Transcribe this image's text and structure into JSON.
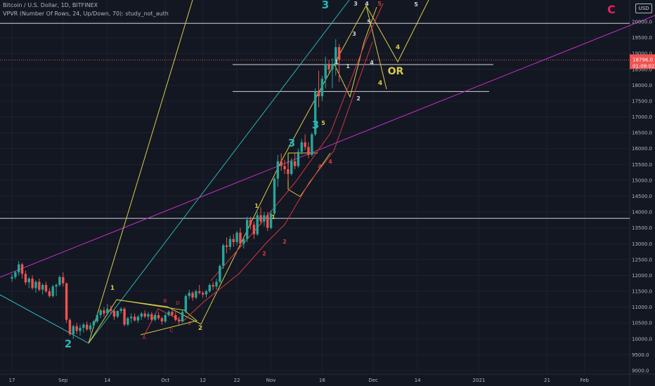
{
  "legend": {
    "symbol": "Bitcoin / U.S. Dollar, 1D, BITFINEX",
    "indicator": "VPVR (Number Of Rows, 24, Up/Down, 70): study_not_auth"
  },
  "currency_button": "USD",
  "price_badge": {
    "price": "18796.0",
    "countdown": "01:08:02",
    "color": "#ef5350"
  },
  "colors": {
    "up": "#26a69a",
    "down": "#ef5350",
    "yellow": "#d8cc48",
    "cyan": "#2ab5b5",
    "magenta": "#c42fc4",
    "white": "#d1d4dc",
    "red_line": "#d23842",
    "corner_c": "#e91e63"
  },
  "chart_data": {
    "type": "candlestick",
    "ylim": [
      8950,
      20250
    ],
    "y_ticks": [
      9000,
      9500,
      10000,
      10500,
      11000,
      11500,
      12000,
      12500,
      13000,
      13500,
      14000,
      14500,
      15000,
      15500,
      16000,
      16500,
      17000,
      17500,
      18000,
      18500,
      19000,
      19500,
      20000
    ],
    "y_tick_labels": [
      "9000.0",
      "9500.0",
      "10000.0",
      "10500.0",
      "11000.0",
      "11500.0",
      "12000.0",
      "12500.0",
      "13000.0",
      "13500.0",
      "14000.0",
      "14500.0",
      "15000.0",
      "15500.0",
      "16000.0",
      "16500.0",
      "17000.0",
      "17500.0",
      "18000.0",
      "18500.0",
      "19000.0",
      "19500.0",
      "20000.0"
    ],
    "x_ticks": [
      {
        "label": "17",
        "day": 0
      },
      {
        "label": "Sep",
        "day": 15
      },
      {
        "label": "14",
        "day": 28
      },
      {
        "label": "Oct",
        "day": 45
      },
      {
        "label": "12",
        "day": 56
      },
      {
        "label": "22",
        "day": 66
      },
      {
        "label": "Nov",
        "day": 76
      },
      {
        "label": "16",
        "day": 91
      },
      {
        "label": "Dec",
        "day": 106
      },
      {
        "label": "14",
        "day": 119
      },
      {
        "label": "2021",
        "day": 137
      },
      {
        "label": "21",
        "day": 157
      },
      {
        "label": "Feb",
        "day": 168
      }
    ],
    "candles_ohlc": [
      [
        11900,
        12050,
        11800,
        11950
      ],
      [
        11950,
        12150,
        11880,
        12100
      ],
      [
        12100,
        12450,
        12000,
        12350
      ],
      [
        12350,
        12400,
        11900,
        12050
      ],
      [
        12050,
        12150,
        11700,
        11780
      ],
      [
        11780,
        11950,
        11600,
        11900
      ],
      [
        11900,
        12000,
        11550,
        11600
      ],
      [
        11600,
        11850,
        11450,
        11800
      ],
      [
        11800,
        11900,
        11500,
        11550
      ],
      [
        11550,
        11750,
        11400,
        11700
      ],
      [
        11700,
        11800,
        11450,
        11500
      ],
      [
        11500,
        11600,
        11300,
        11350
      ],
      [
        11350,
        11700,
        11300,
        11650
      ],
      [
        11650,
        11750,
        11350,
        11700
      ],
      [
        11700,
        12000,
        11650,
        11950
      ],
      [
        11950,
        12100,
        11650,
        11750
      ],
      [
        11750,
        11780,
        10500,
        10600
      ],
      [
        10600,
        10650,
        10100,
        10150
      ],
      [
        10150,
        10450,
        10000,
        10400
      ],
      [
        10400,
        10500,
        10150,
        10250
      ],
      [
        10250,
        10450,
        10100,
        10350
      ],
      [
        10350,
        10500,
        10200,
        10450
      ],
      [
        10450,
        10550,
        10250,
        10300
      ],
      [
        10300,
        10500,
        10200,
        10420
      ],
      [
        10420,
        10600,
        10350,
        10550
      ],
      [
        10550,
        10800,
        10500,
        10750
      ],
      [
        10750,
        10950,
        10650,
        10900
      ],
      [
        10900,
        11000,
        10700,
        10800
      ],
      [
        10800,
        11100,
        10750,
        10950
      ],
      [
        10950,
        11050,
        10800,
        10880
      ],
      [
        10880,
        10950,
        10600,
        10700
      ],
      [
        10700,
        10900,
        10650,
        10880
      ],
      [
        10880,
        11000,
        10800,
        10950
      ],
      [
        10950,
        11000,
        10400,
        10450
      ],
      [
        10450,
        10700,
        10400,
        10650
      ],
      [
        10650,
        10800,
        10500,
        10700
      ],
      [
        10700,
        10800,
        10550,
        10580
      ],
      [
        10580,
        10750,
        10500,
        10700
      ],
      [
        10700,
        10850,
        10600,
        10800
      ],
      [
        10800,
        10900,
        10650,
        10700
      ],
      [
        10700,
        10850,
        10600,
        10780
      ],
      [
        10780,
        10850,
        10550,
        10600
      ],
      [
        10600,
        10800,
        10550,
        10750
      ],
      [
        10750,
        10850,
        10600,
        10650
      ],
      [
        10650,
        10700,
        10450,
        10550
      ],
      [
        10550,
        10800,
        10500,
        10750
      ],
      [
        10750,
        10900,
        10700,
        10850
      ],
      [
        10850,
        10950,
        10700,
        10750
      ],
      [
        10750,
        10850,
        10550,
        10600
      ],
      [
        10600,
        10700,
        10450,
        10550
      ],
      [
        10550,
        10900,
        10500,
        10850
      ],
      [
        10850,
        11400,
        10800,
        11350
      ],
      [
        11350,
        11550,
        11250,
        11450
      ],
      [
        11450,
        11500,
        11200,
        11300
      ],
      [
        11300,
        11550,
        11250,
        11500
      ],
      [
        11500,
        11700,
        11400,
        11450
      ],
      [
        11450,
        11500,
        11300,
        11400
      ],
      [
        11400,
        11550,
        11300,
        11500
      ],
      [
        11500,
        11750,
        11450,
        11700
      ],
      [
        11700,
        11800,
        11550,
        11650
      ],
      [
        11650,
        11900,
        11550,
        11800
      ],
      [
        11800,
        12350,
        11750,
        12300
      ],
      [
        12300,
        13000,
        12200,
        12950
      ],
      [
        12950,
        13200,
        12700,
        12900
      ],
      [
        12900,
        13250,
        12800,
        13150
      ],
      [
        13150,
        13300,
        12900,
        13050
      ],
      [
        13050,
        13400,
        12950,
        13350
      ],
      [
        13350,
        13500,
        12900,
        13000
      ],
      [
        13000,
        13200,
        12850,
        13150
      ],
      [
        13150,
        13850,
        13050,
        13750
      ],
      [
        13750,
        13850,
        13450,
        13600
      ],
      [
        13600,
        13700,
        13150,
        13300
      ],
      [
        13300,
        14000,
        13250,
        13900
      ],
      [
        13900,
        14150,
        13600,
        13700
      ],
      [
        13700,
        14000,
        13550,
        13900
      ],
      [
        13900,
        14000,
        13400,
        13500
      ],
      [
        13500,
        14050,
        13450,
        13950
      ],
      [
        13950,
        15100,
        13900,
        15050
      ],
      [
        15050,
        15800,
        14800,
        15600
      ],
      [
        15600,
        15850,
        15300,
        15450
      ],
      [
        15450,
        15650,
        15200,
        15350
      ],
      [
        15350,
        15500,
        15000,
        15200
      ],
      [
        15200,
        15700,
        15150,
        15600
      ],
      [
        15600,
        15850,
        15350,
        15450
      ],
      [
        15450,
        16000,
        15400,
        15900
      ],
      [
        15900,
        16300,
        15800,
        16200
      ],
      [
        16200,
        16450,
        15950,
        16050
      ],
      [
        16050,
        16200,
        15700,
        15800
      ],
      [
        15800,
        16500,
        15750,
        16450
      ],
      [
        16450,
        17900,
        16400,
        17800
      ],
      [
        17800,
        18450,
        17300,
        17650
      ],
      [
        17650,
        18300,
        17500,
        18200
      ],
      [
        18200,
        18900,
        17900,
        18650
      ],
      [
        18650,
        18800,
        18400,
        18500
      ],
      [
        18500,
        18850,
        17900,
        18650
      ],
      [
        18650,
        19450,
        18300,
        19200
      ],
      [
        19200,
        19300,
        18100,
        18800
      ]
    ],
    "horizontal_levels": [
      19950,
      18796,
      18650,
      17800,
      13800
    ],
    "wave_labels": [
      {
        "text": "2",
        "x": 97,
        "y": 495
      },
      {
        "text": "3",
        "x": 463,
        "y": 12
      },
      {
        "text": "C",
        "x": 870,
        "y": 19
      },
      {
        "text": "OR",
        "x": 563,
        "y": 106
      },
      {
        "text": "1",
        "x": 160,
        "y": 413
      },
      {
        "text": "2",
        "x": 285,
        "y": 470
      },
      {
        "text": "3",
        "x": 506,
        "y": 8
      },
      {
        "text": "4",
        "x": 522,
        "y": 8
      },
      {
        "text": "5",
        "x": 540,
        "y": 8
      },
      {
        "text": "5",
        "x": 592,
        "y": 9
      },
      {
        "text": "4",
        "x": 566,
        "y": 70
      },
      {
        "text": "4",
        "x": 541,
        "y": 121
      },
      {
        "text": "3",
        "x": 504,
        "y": 51
      },
      {
        "text": "5",
        "x": 525,
        "y": 34
      },
      {
        "text": "1",
        "x": 479,
        "y": 91
      },
      {
        "text": "2",
        "x": 510,
        "y": 143
      },
      {
        "text": "4",
        "x": 529,
        "y": 92
      },
      {
        "text": "1",
        "x": 495,
        "y": 97
      },
      {
        "text": "3",
        "x": 415,
        "y": 209
      },
      {
        "text": "4",
        "x": 455,
        "y": 240
      },
      {
        "text": "5",
        "x": 460,
        "y": 178
      },
      {
        "text": "3",
        "x": 449,
        "y": 183
      },
      {
        "text": "4",
        "x": 470,
        "y": 233
      },
      {
        "text": "1",
        "x": 365,
        "y": 296
      },
      {
        "text": "1",
        "x": 389,
        "y": 312
      },
      {
        "text": "2",
        "x": 376,
        "y": 364
      },
      {
        "text": "2",
        "x": 405,
        "y": 347
      },
      {
        "text": "B",
        "x": 235,
        "y": 431
      },
      {
        "text": "D",
        "x": 253,
        "y": 434
      },
      {
        "text": "A",
        "x": 205,
        "y": 483
      },
      {
        "text": "C",
        "x": 244,
        "y": 473
      },
      {
        "text": "E",
        "x": 270,
        "y": 463
      }
    ]
  }
}
